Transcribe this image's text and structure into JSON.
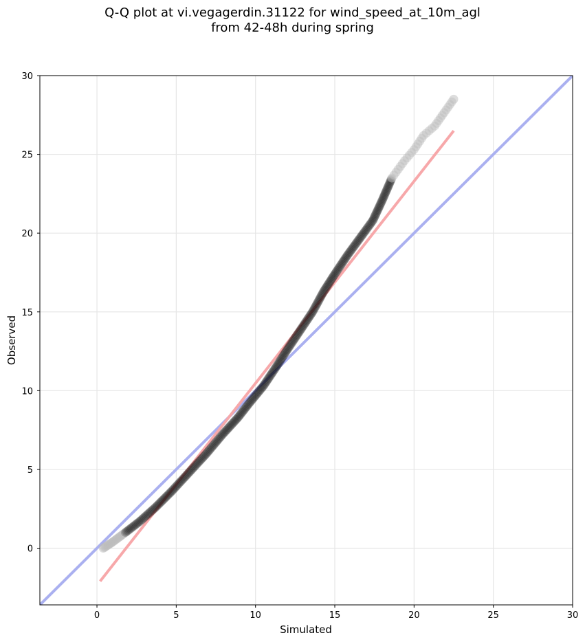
{
  "chart_data": {
    "type": "scatter",
    "title_lines": [
      "Q-Q plot at vi.vegagerdin.31122 for wind_speed_at_10m_agl",
      "from 42-48h during spring"
    ],
    "xlabel": "Simulated",
    "ylabel": "Observed",
    "xlim": [
      -3.6,
      30
    ],
    "ylim": [
      -3.6,
      30
    ],
    "xticks": [
      0,
      5,
      10,
      15,
      20,
      25,
      30
    ],
    "yticks": [
      0,
      5,
      10,
      15,
      20,
      25,
      30
    ],
    "grid": true,
    "reference_lines": [
      {
        "kind": "identity",
        "x": [
          -3.6,
          30
        ],
        "y": [
          -3.6,
          30
        ],
        "color": "#aab0f0"
      },
      {
        "kind": "fit",
        "x": [
          0.2,
          22.5
        ],
        "y": [
          -2.1,
          26.5
        ],
        "color": "#f7a8aa"
      }
    ],
    "quantile_curve": {
      "x": [
        0.4,
        1.0,
        1.8,
        2.7,
        3.7,
        4.7,
        5.8,
        6.9,
        7.9,
        8.9,
        9.6,
        10.5,
        11.3,
        12.0,
        12.8,
        13.6,
        14.3,
        15.0,
        15.8,
        16.6,
        17.4,
        18.0,
        18.6,
        19.4,
        20.0,
        20.6,
        21.3,
        22.5
      ],
      "y": [
        0.0,
        0.4,
        1.0,
        1.7,
        2.6,
        3.6,
        4.8,
        6.0,
        7.2,
        8.3,
        9.2,
        10.3,
        11.5,
        12.6,
        13.8,
        15.0,
        16.3,
        17.4,
        18.6,
        19.7,
        20.8,
        22.1,
        23.5,
        24.6,
        25.3,
        26.2,
        26.8,
        28.5
      ]
    },
    "point_color": "#000000",
    "tail_color": "#bcbcbc"
  }
}
